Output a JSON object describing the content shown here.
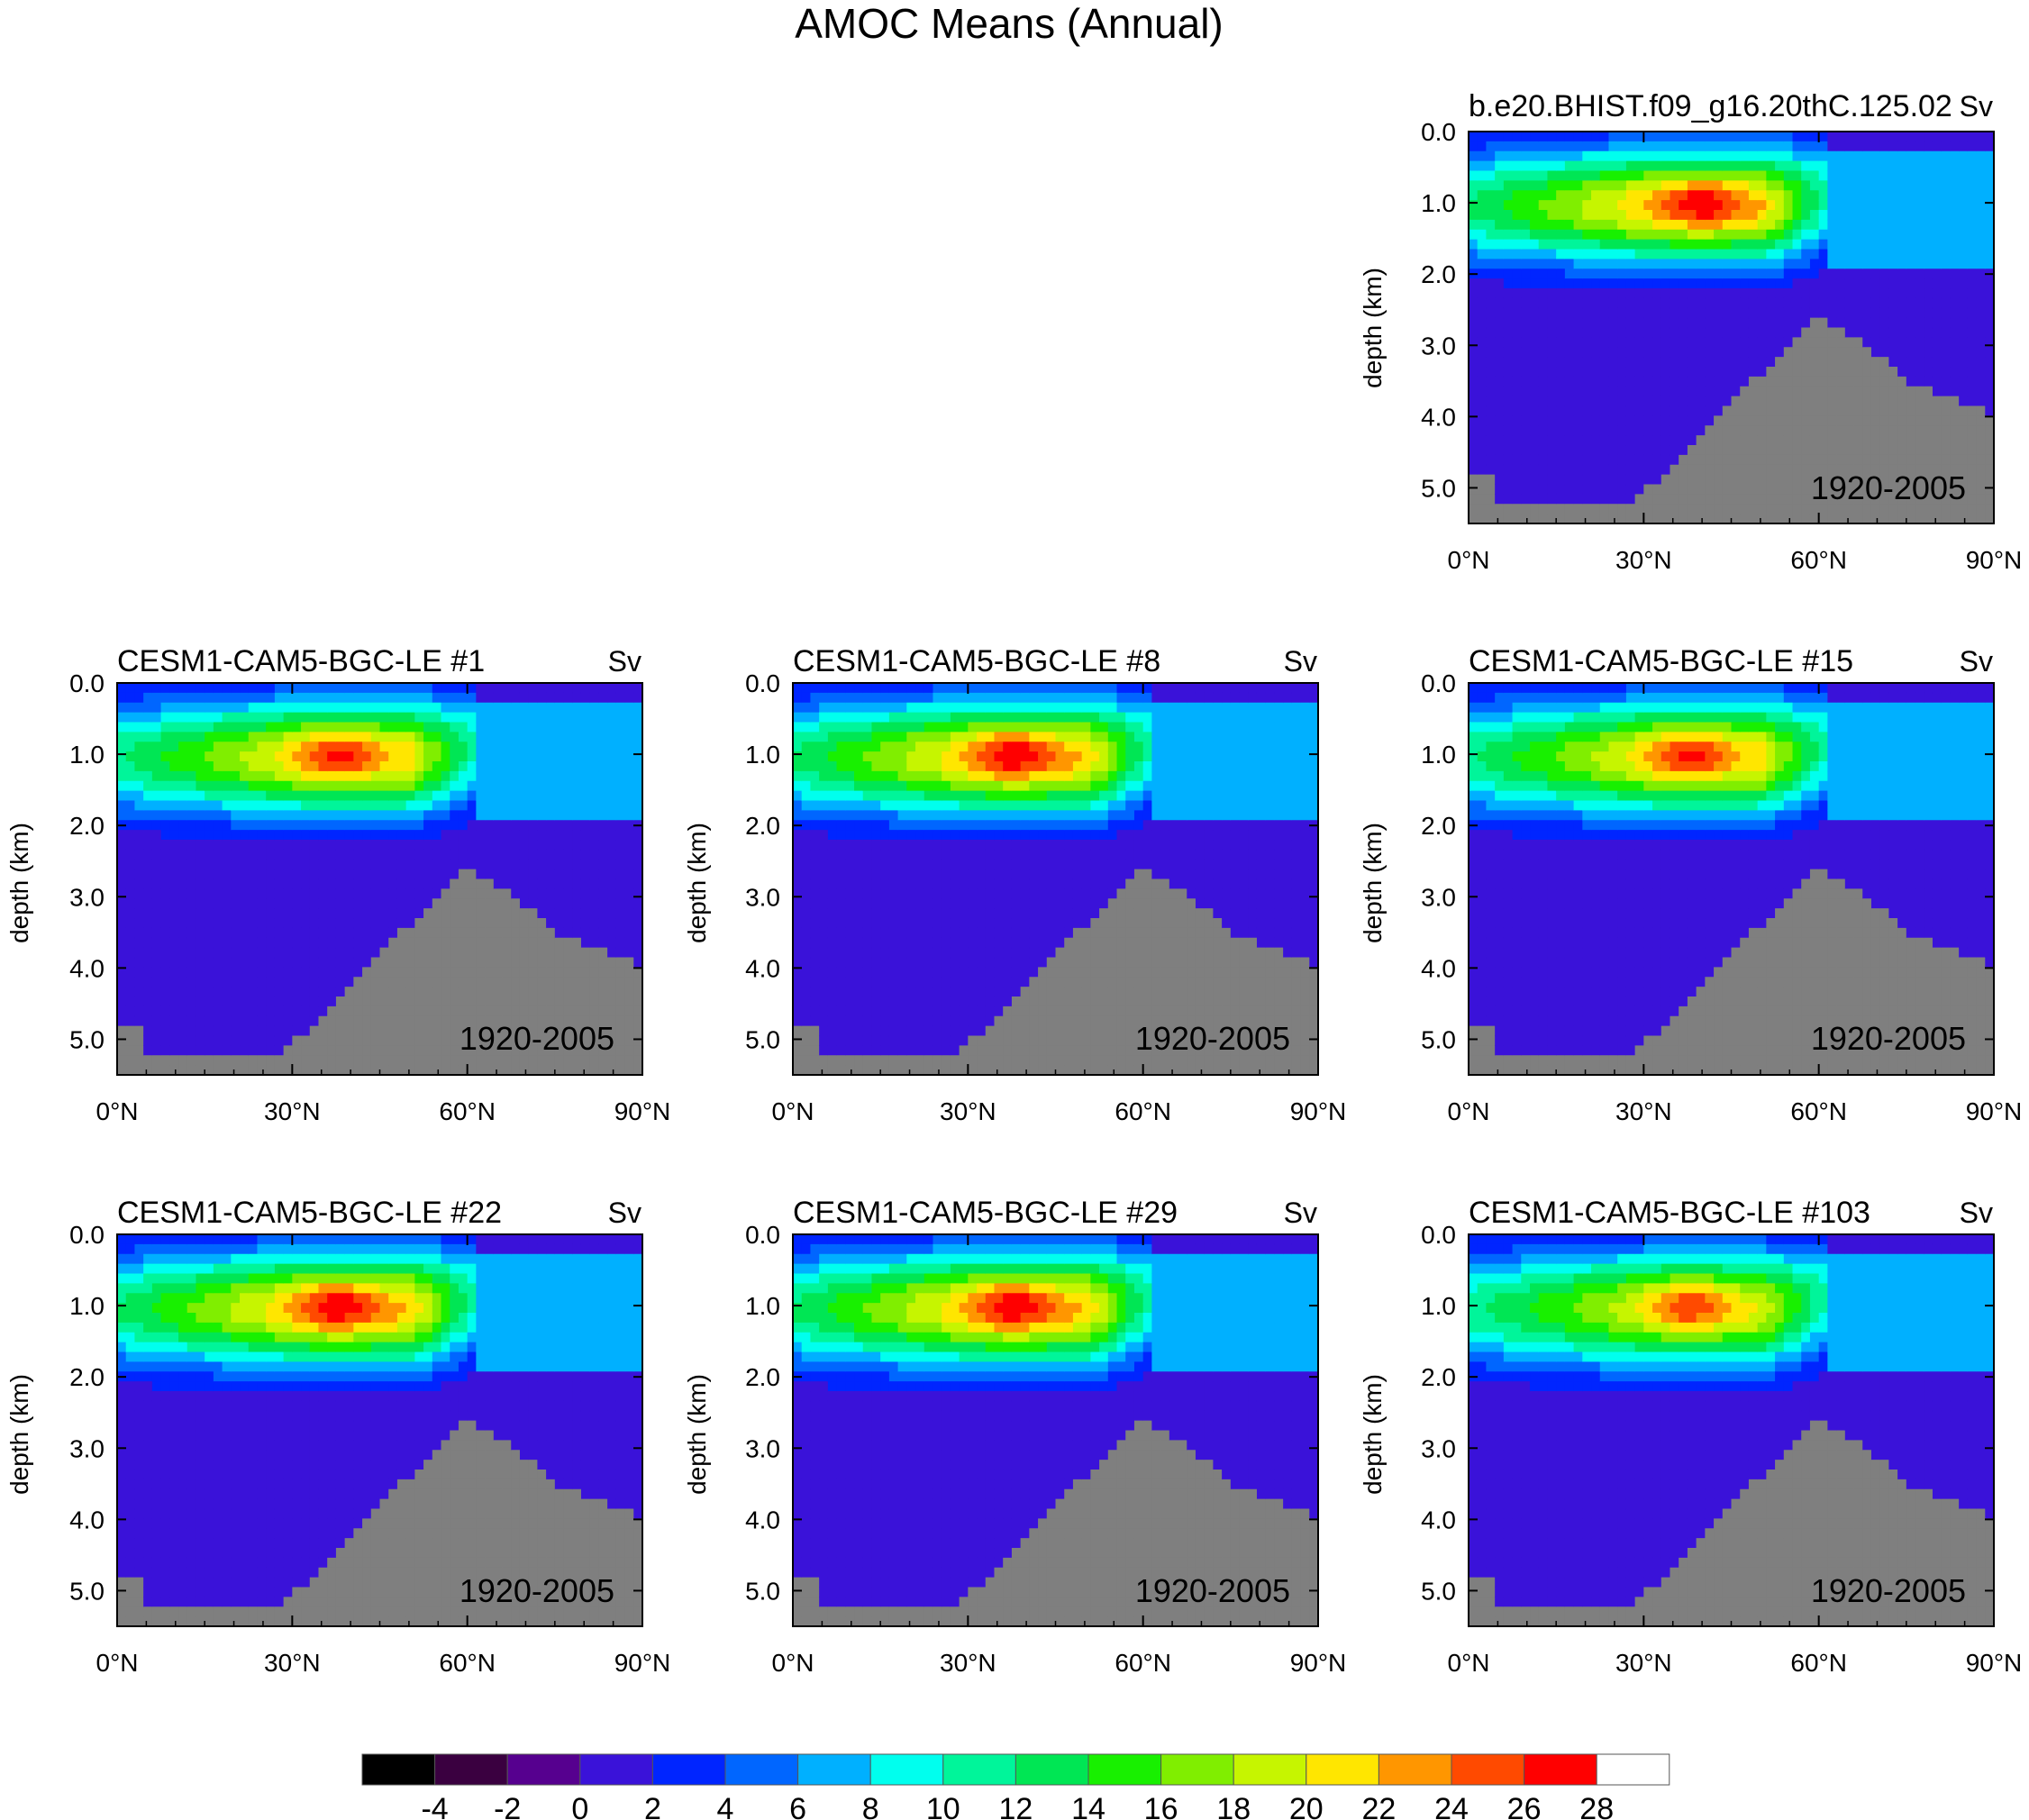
{
  "figure": {
    "title": "AMOC Means (Annual)"
  },
  "chart_data": {
    "type": "heatmap",
    "panels": [
      {
        "title": "b.e20.BHIST.f09_g16.20thC.125.02",
        "units": "Sv",
        "period": "1920-2005",
        "xlabel": "",
        "ylabel": "depth (km)",
        "xticks": [
          "0°N",
          "30°N",
          "60°N",
          "90°N"
        ],
        "yticks": [
          "0.0",
          "1.0",
          "2.0",
          "3.0",
          "4.0",
          "5.0"
        ],
        "xlim": [
          0,
          90
        ],
        "ylim": [
          5.5,
          0
        ],
        "max_sv": 28.5,
        "core_lat": 40,
        "core_depth": 1.0
      },
      {
        "title": "CESM1-CAM5-BGC-LE #1",
        "units": "Sv",
        "period": "1920-2005",
        "xlabel": "",
        "ylabel": "depth (km)",
        "xticks": [
          "0°N",
          "30°N",
          "60°N",
          "90°N"
        ],
        "yticks": [
          "0.0",
          "1.0",
          "2.0",
          "3.0",
          "4.0",
          "5.0"
        ],
        "xlim": [
          0,
          90
        ],
        "ylim": [
          5.5,
          0
        ],
        "max_sv": 27.5,
        "core_lat": 38,
        "core_depth": 1.0
      },
      {
        "title": "CESM1-CAM5-BGC-LE #8",
        "units": "Sv",
        "period": "1920-2005",
        "xlabel": "",
        "ylabel": "depth (km)",
        "xticks": [
          "0°N",
          "30°N",
          "60°N",
          "90°N"
        ],
        "yticks": [
          "0.0",
          "1.0",
          "2.0",
          "3.0",
          "4.0",
          "5.0"
        ],
        "xlim": [
          0,
          90
        ],
        "ylim": [
          5.5,
          0
        ],
        "max_sv": 28.5,
        "core_lat": 38,
        "core_depth": 1.0
      },
      {
        "title": "CESM1-CAM5-BGC-LE #15",
        "units": "Sv",
        "period": "1920-2005",
        "xlabel": "",
        "ylabel": "depth (km)",
        "xticks": [
          "0°N",
          "30°N",
          "60°N",
          "90°N"
        ],
        "yticks": [
          "0.0",
          "1.0",
          "2.0",
          "3.0",
          "4.0",
          "5.0"
        ],
        "xlim": [
          0,
          90
        ],
        "ylim": [
          5.5,
          0
        ],
        "max_sv": 27.5,
        "core_lat": 38,
        "core_depth": 1.0
      },
      {
        "title": "CESM1-CAM5-BGC-LE #22",
        "units": "Sv",
        "period": "1920-2005",
        "xlabel": "",
        "ylabel": "depth (km)",
        "xticks": [
          "0°N",
          "30°N",
          "60°N",
          "90°N"
        ],
        "yticks": [
          "0.0",
          "1.0",
          "2.0",
          "3.0",
          "4.0",
          "5.0"
        ],
        "xlim": [
          0,
          90
        ],
        "ylim": [
          5.5,
          0
        ],
        "max_sv": 28.5,
        "core_lat": 38,
        "core_depth": 1.0
      },
      {
        "title": "CESM1-CAM5-BGC-LE #29",
        "units": "Sv",
        "period": "1920-2005",
        "xlabel": "",
        "ylabel": "depth (km)",
        "xticks": [
          "0°N",
          "30°N",
          "60°N",
          "90°N"
        ],
        "yticks": [
          "0.0",
          "1.0",
          "2.0",
          "3.0",
          "4.0",
          "5.0"
        ],
        "xlim": [
          0,
          90
        ],
        "ylim": [
          5.5,
          0
        ],
        "max_sv": 28.5,
        "core_lat": 38,
        "core_depth": 1.0
      },
      {
        "title": "CESM1-CAM5-BGC-LE #103",
        "units": "Sv",
        "period": "1920-2005",
        "xlabel": "",
        "ylabel": "depth (km)",
        "xticks": [
          "0°N",
          "30°N",
          "60°N",
          "90°N"
        ],
        "yticks": [
          "0.0",
          "1.0",
          "2.0",
          "3.0",
          "4.0",
          "5.0"
        ],
        "xlim": [
          0,
          90
        ],
        "ylim": [
          5.5,
          0
        ],
        "max_sv": 26.5,
        "core_lat": 38,
        "core_depth": 1.0
      }
    ],
    "colorbar": {
      "levels": [
        -4,
        -2,
        0,
        2,
        4,
        6,
        8,
        10,
        12,
        14,
        16,
        18,
        20,
        22,
        24,
        26,
        28
      ],
      "labels": [
        "-4",
        "-2",
        "0",
        "2",
        "4",
        "6",
        "8",
        "10",
        "12",
        "14",
        "16",
        "18",
        "20",
        "22",
        "24",
        "26",
        "28"
      ],
      "colors": [
        "#000000",
        "#3a0040",
        "#56008f",
        "#3a12d9",
        "#0025ff",
        "#0066ff",
        "#00b0ff",
        "#00ffee",
        "#00f59a",
        "#00e654",
        "#18f000",
        "#80ee00",
        "#c6f500",
        "#ffe600",
        "#ff9600",
        "#ff4a00",
        "#ff0000",
        "#ffffff"
      ]
    },
    "topography_color": "#7f7f7f"
  }
}
